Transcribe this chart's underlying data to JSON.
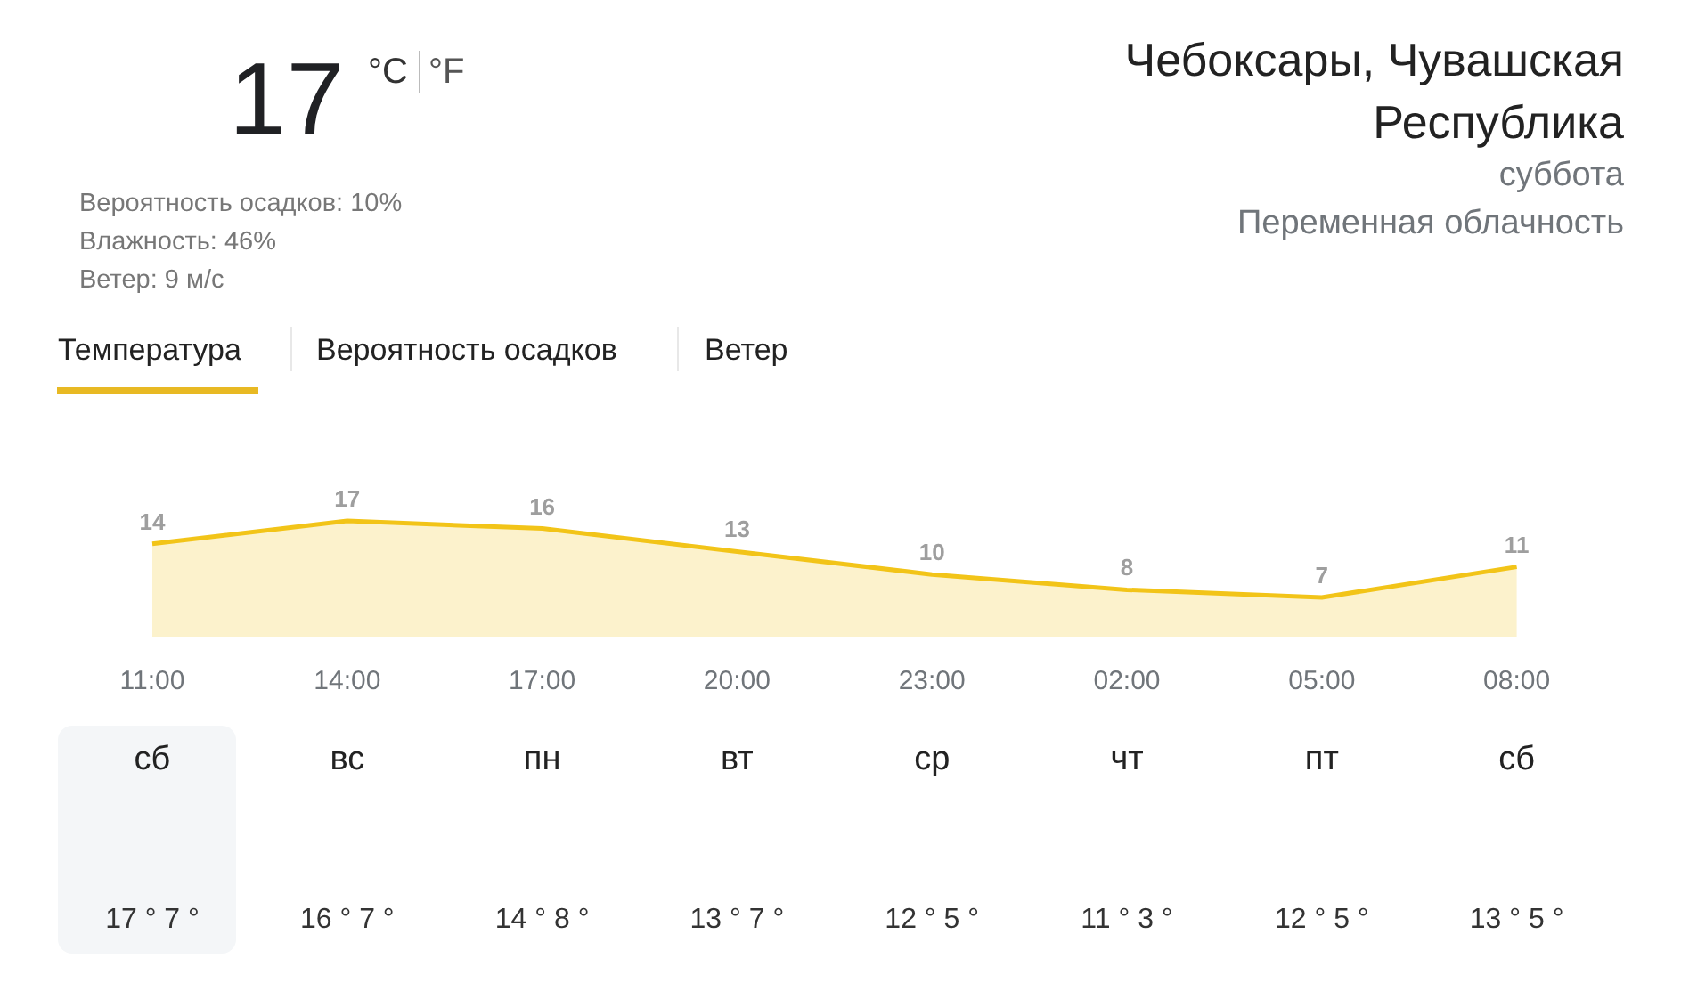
{
  "chart_data": {
    "type": "area",
    "title": "Чебоксары, Чувашская Республика",
    "subtitle": "Переменная облачность",
    "categories": [
      "11:00",
      "14:00",
      "17:00",
      "20:00",
      "23:00",
      "02:00",
      "05:00",
      "08:00"
    ],
    "series": [
      {
        "color": "#f2c418",
        "values": [
          14,
          17,
          16,
          13,
          10,
          8,
          7,
          11
        ]
      }
    ],
    "data_labels": true,
    "annotations": [
      "17",
      "°C",
      "°F",
      "Вероятность осадков: 10%",
      "Влажность: 46%",
      "Ветер: 9 м/с",
      "суббота",
      "Температура",
      "Вероятность осадков",
      "Ветер",
      "сб",
      "вс",
      "пн",
      "вт",
      "ср",
      "чт",
      "пт",
      "сб",
      "17 ° 7 °",
      "16 ° 7 °",
      "14 ° 8 °",
      "13 ° 7 °",
      "12 ° 5 °",
      "11 ° 3 °",
      "12 ° 5 °",
      "13 ° 5 °"
    ]
  }
}
